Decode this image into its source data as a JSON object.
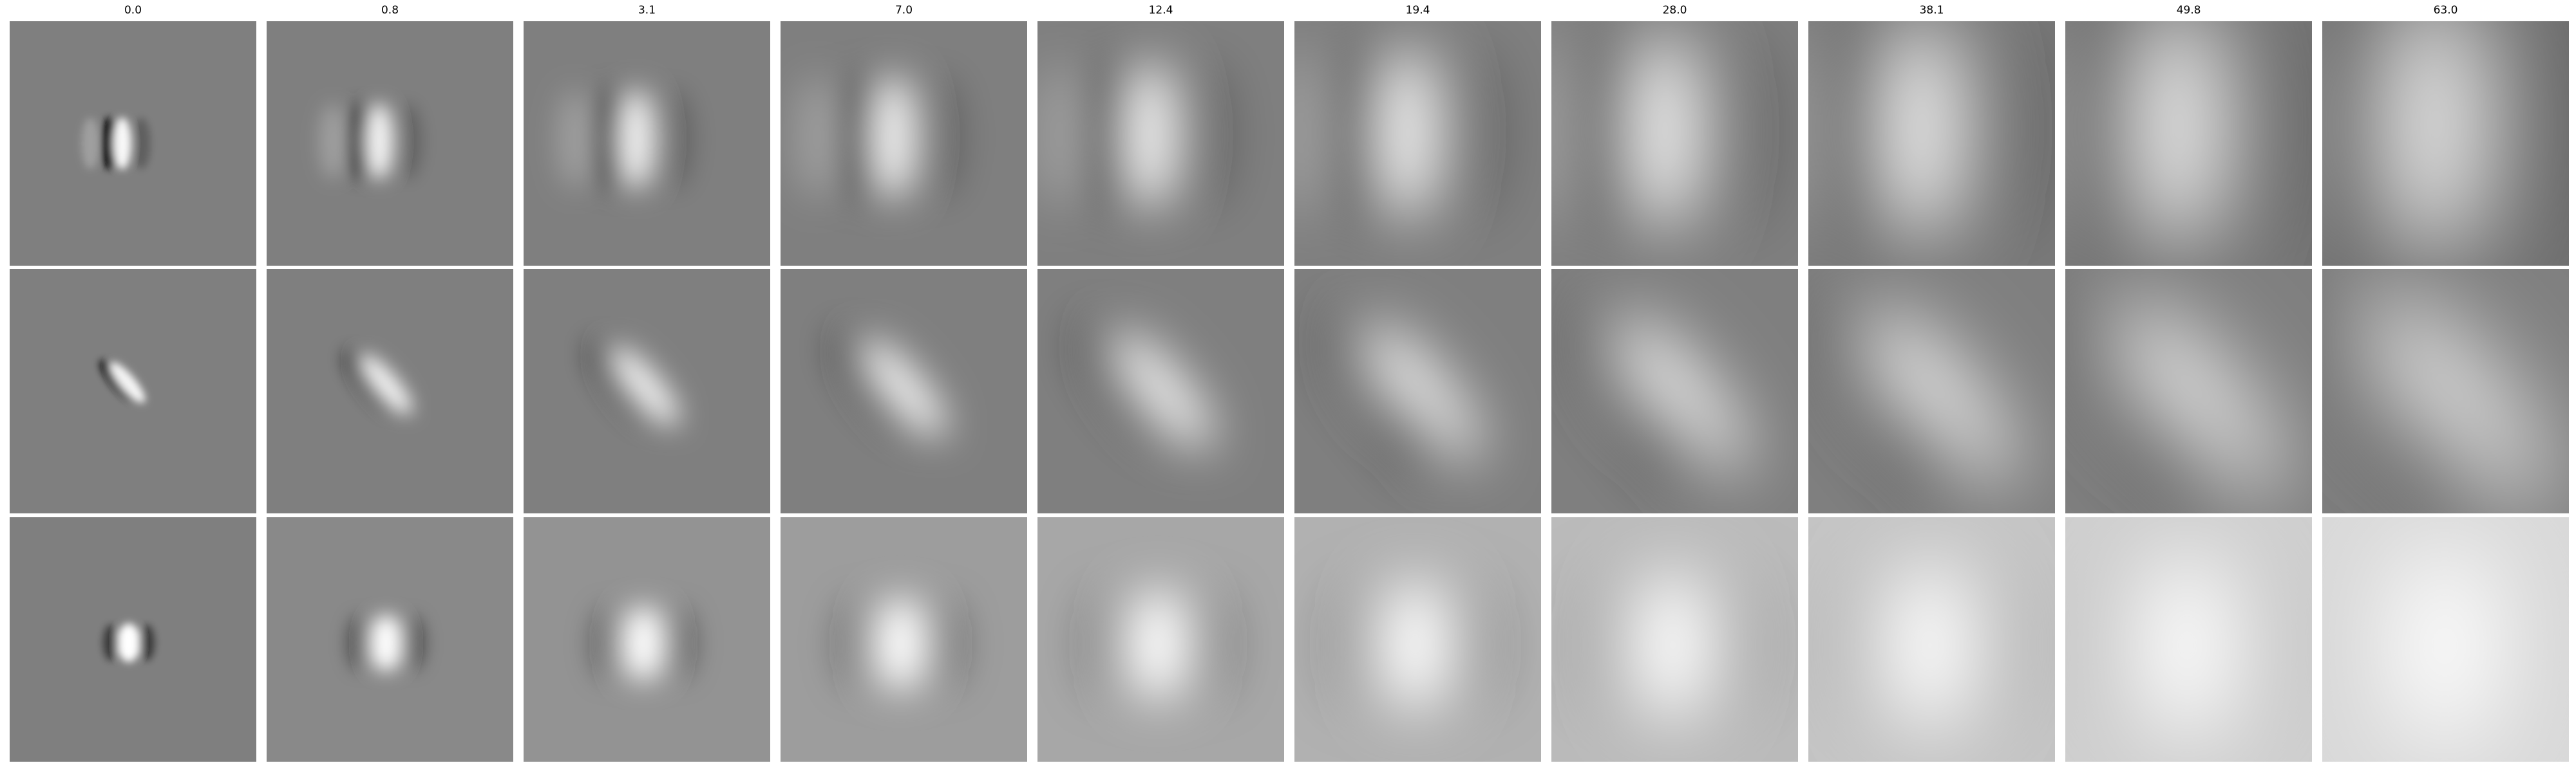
{
  "figure": {
    "column_titles": [
      "0.0",
      "0.8",
      "3.1",
      "7.0",
      "12.4",
      "19.4",
      "28.0",
      "38.1",
      "49.8",
      "63.0"
    ],
    "rows": 3,
    "panel_style": "grayscale blurred filter responses; blur increases left to right",
    "colors": {
      "background_gray": "#7f7f7f",
      "dark": "#000000",
      "light": "#ffffff",
      "separator": "#ffffff"
    }
  }
}
